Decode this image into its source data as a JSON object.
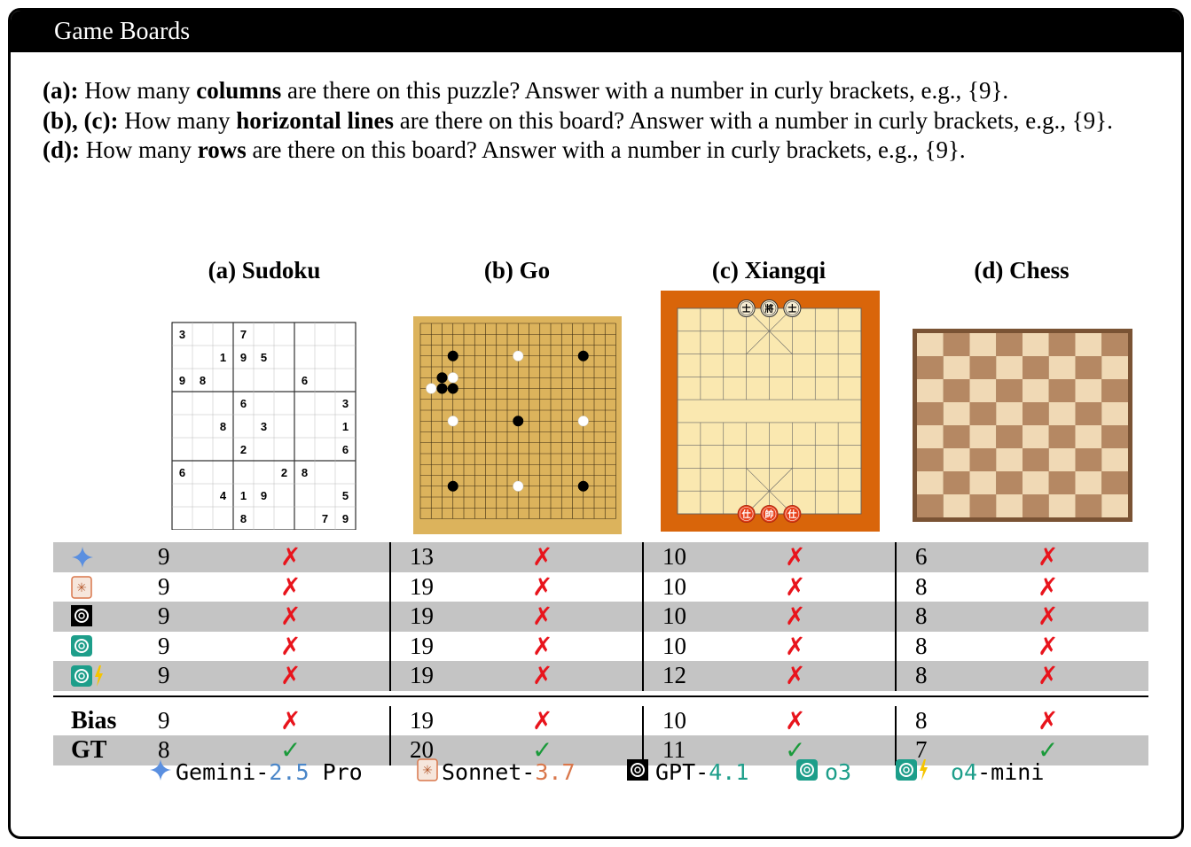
{
  "header": {
    "title": "Game Boards"
  },
  "questions": [
    {
      "label": "(a):",
      "pre": " How many ",
      "bold": "columns",
      "post": " are there on this puzzle? Answer with a number in curly brackets, e.g., {9}."
    },
    {
      "label": "(b), (c):",
      "pre": " How many ",
      "bold": "horizontal lines",
      "post": " are there on this board? Answer with a number in curly brackets, e.g., {9}."
    },
    {
      "label": "(d):",
      "pre": " How many ",
      "bold": "rows",
      "post": " are there on this board? Answer with a number in curly brackets, e.g., {9}."
    }
  ],
  "boards": [
    {
      "title": "(a) Sudoku"
    },
    {
      "title": "(b) Go"
    },
    {
      "title": "(c) Xiangqi"
    },
    {
      "title": "(d) Chess"
    }
  ],
  "sudoku": {
    "grid": [
      [
        "3",
        "",
        "",
        "7",
        "",
        "",
        "",
        "",
        ""
      ],
      [
        "",
        "",
        "1",
        "9",
        "5",
        "",
        "",
        "",
        ""
      ],
      [
        "9",
        "8",
        "",
        "",
        "",
        "",
        "6",
        "",
        ""
      ],
      [
        "",
        "",
        "",
        "6",
        "",
        "",
        "",
        "",
        "3"
      ],
      [
        "",
        "",
        "8",
        "",
        "3",
        "",
        "",
        "",
        "1"
      ],
      [
        "",
        "",
        "",
        "2",
        "",
        "",
        "",
        "",
        "6"
      ],
      [
        "6",
        "",
        "",
        "",
        "",
        "2",
        "8",
        "",
        ""
      ],
      [
        "",
        "",
        "4",
        "1",
        "9",
        "",
        "",
        "",
        "5"
      ],
      [
        "",
        "",
        "",
        "8",
        "",
        "",
        "",
        "7",
        "9"
      ]
    ]
  },
  "xiangqi": {
    "black_pieces": [
      "士",
      "將",
      "士"
    ],
    "red_pieces": [
      "仕",
      "帥",
      "仕"
    ]
  },
  "models": [
    {
      "name": "gemini",
      "answers": [
        "9",
        "13",
        "10",
        "6"
      ]
    },
    {
      "name": "sonnet",
      "answers": [
        "9",
        "19",
        "10",
        "8"
      ]
    },
    {
      "name": "gpt41",
      "answers": [
        "9",
        "19",
        "10",
        "8"
      ]
    },
    {
      "name": "o3",
      "answers": [
        "9",
        "19",
        "10",
        "8"
      ]
    },
    {
      "name": "o4mini",
      "answers": [
        "9",
        "19",
        "12",
        "8"
      ]
    }
  ],
  "bias": {
    "label": "Bias",
    "answers": [
      "9",
      "19",
      "10",
      "8"
    ]
  },
  "gt": {
    "label": "GT",
    "answers": [
      "8",
      "20",
      "11",
      "7"
    ]
  },
  "marks": {
    "wrong": "✗",
    "right": "✓"
  },
  "legend": [
    {
      "prefix": "Gemini-",
      "version": "2.5",
      "suffix": " Pro",
      "version_color": "#4a86c8"
    },
    {
      "prefix": "Sonnet-",
      "version": "3.7",
      "suffix": "",
      "version_color": "#d9774b"
    },
    {
      "prefix": "GPT-",
      "version": "4.1",
      "suffix": "",
      "version_color": "#1d9e8a"
    },
    {
      "prefix": "",
      "version": "o3",
      "suffix": "",
      "version_color": "#1d9e8a"
    },
    {
      "prefix": "",
      "version": "o4",
      "suffix": "-mini",
      "version_color": "#1d9e8a"
    }
  ],
  "colors": {
    "wrong": "#e8141c",
    "right": "#1a9a3a",
    "row_gray": "#c4c4c4",
    "go_board": "#dcb35c",
    "xiangqi_border": "#d9650a",
    "xiangqi_board": "#fae8b0",
    "chess_dark": "#b58863",
    "chess_light": "#f0d9b5",
    "chess_border": "#7a5334"
  }
}
